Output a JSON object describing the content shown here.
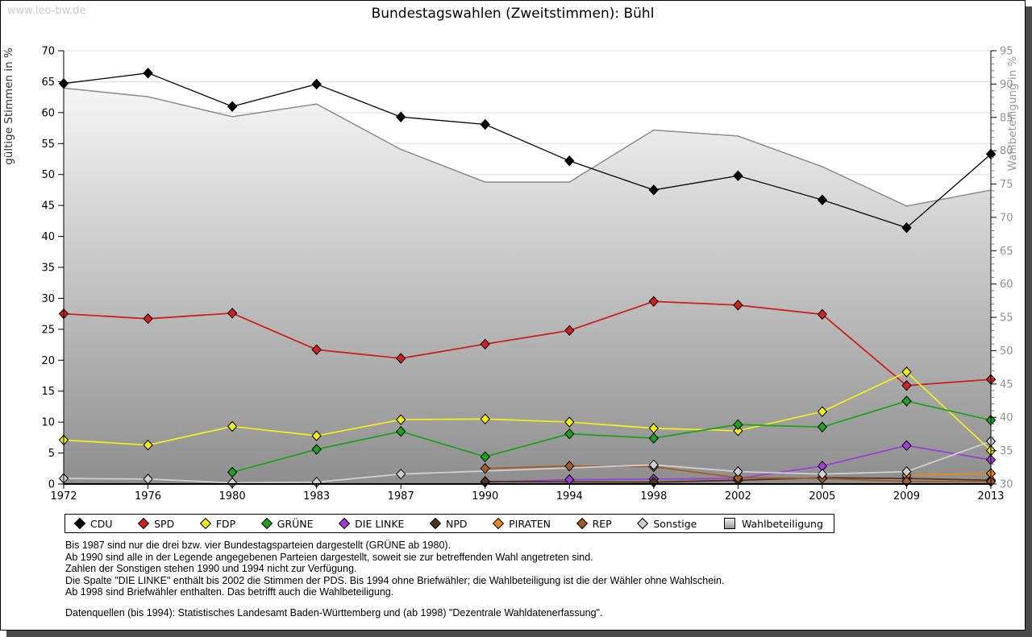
{
  "watermark": "www.leo-bw.de",
  "title": "Bundestagswahlen (Zweitstimmen): Bühl",
  "chart_data": {
    "type": "line",
    "title": "Bundestagswahlen (Zweitstimmen): Bühl",
    "x": [
      1972,
      1976,
      1980,
      1983,
      1987,
      1990,
      1994,
      1998,
      2002,
      2005,
      2009,
      2013
    ],
    "left_axis": {
      "label": "gültige Stimmen in %",
      "min": 0,
      "max": 70,
      "step": 5
    },
    "right_axis": {
      "label": "Wahlbeteiligung in %",
      "min": 30,
      "max": 95,
      "step": 5,
      "minor_step": 1
    },
    "grid": "horizontal",
    "legend_position": "bottom",
    "series": [
      {
        "name": "CDU",
        "color": "#000000",
        "axis": "left",
        "values": [
          64.7,
          66.4,
          61.0,
          64.6,
          59.3,
          58.1,
          52.2,
          47.5,
          49.8,
          45.9,
          41.4,
          53.3
        ]
      },
      {
        "name": "SPD",
        "color": "#cc2222",
        "axis": "left",
        "values": [
          27.5,
          26.7,
          27.6,
          21.7,
          20.3,
          22.6,
          24.8,
          29.5,
          28.9,
          27.4,
          15.9,
          16.9
        ]
      },
      {
        "name": "FDP",
        "color": "#efec20",
        "axis": "left",
        "values": [
          7.1,
          6.3,
          9.3,
          7.8,
          10.4,
          10.5,
          10.0,
          9.0,
          8.6,
          11.7,
          18.1,
          5.4
        ]
      },
      {
        "name": "GRÜNE",
        "color": "#21a121",
        "axis": "left",
        "values": [
          null,
          null,
          1.9,
          5.6,
          8.5,
          4.4,
          8.1,
          7.4,
          9.6,
          9.2,
          13.4,
          10.3
        ]
      },
      {
        "name": "DIE LINKE",
        "color": "#9c3fd4",
        "axis": "left",
        "values": [
          null,
          null,
          null,
          null,
          null,
          0.3,
          0.7,
          0.8,
          0.9,
          2.9,
          6.2,
          3.9
        ]
      },
      {
        "name": "NPD",
        "color": "#50341f",
        "axis": "left",
        "values": [
          null,
          null,
          null,
          null,
          null,
          0.4,
          null,
          0.3,
          0.6,
          1.0,
          0.9,
          0.6
        ]
      },
      {
        "name": "PIRATEN",
        "color": "#e8891c",
        "axis": "left",
        "values": [
          null,
          null,
          null,
          null,
          null,
          null,
          null,
          null,
          null,
          null,
          1.4,
          1.7
        ]
      },
      {
        "name": "REP",
        "color": "#a35b2a",
        "axis": "left",
        "values": [
          null,
          null,
          null,
          null,
          null,
          2.5,
          2.9,
          2.8,
          1.0,
          0.9,
          0.4,
          0.4
        ]
      },
      {
        "name": "Sonstige",
        "color": "#cfcfcf",
        "axis": "left",
        "values": [
          0.9,
          0.8,
          0.2,
          0.3,
          1.6,
          null,
          null,
          3.1,
          2.0,
          1.6,
          2.0,
          6.9
        ]
      },
      {
        "name": "Wahlbeteiligung",
        "color": "#b8b8b8",
        "axis": "right",
        "type": "area",
        "values": [
          89.4,
          88.1,
          85.1,
          87.0,
          80.2,
          75.3,
          75.3,
          83.1,
          82.2,
          77.6,
          71.7,
          74.1
        ]
      }
    ]
  },
  "notes": [
    "Bis 1987 sind nur die drei bzw. vier Bundestagsparteien dargestellt (GRÜNE ab 1980).",
    "Ab 1990 sind alle in der Legende angegebenen Parteien dargestellt, soweit sie zur betreffenden Wahl angetreten sind.",
    "Zahlen der Sonstigen stehen 1990 und 1994 nicht zur Verfügung.",
    "Die Spalte \"DIE LINKE\" enthält bis 2002 die Stimmen der PDS. Bis 1994 ohne Briefwähler; die Wahlbeteiligung ist die der Wähler ohne Wahlschein.",
    "Ab 1998 sind Briefwähler enthalten. Das betrifft auch die Wahlbeteiligung."
  ],
  "source": "Datenquellen (bis 1994): Statistisches Landesamt Baden-Württemberg und (ab 1998) \"Dezentrale Wahldatenerfassung\"."
}
